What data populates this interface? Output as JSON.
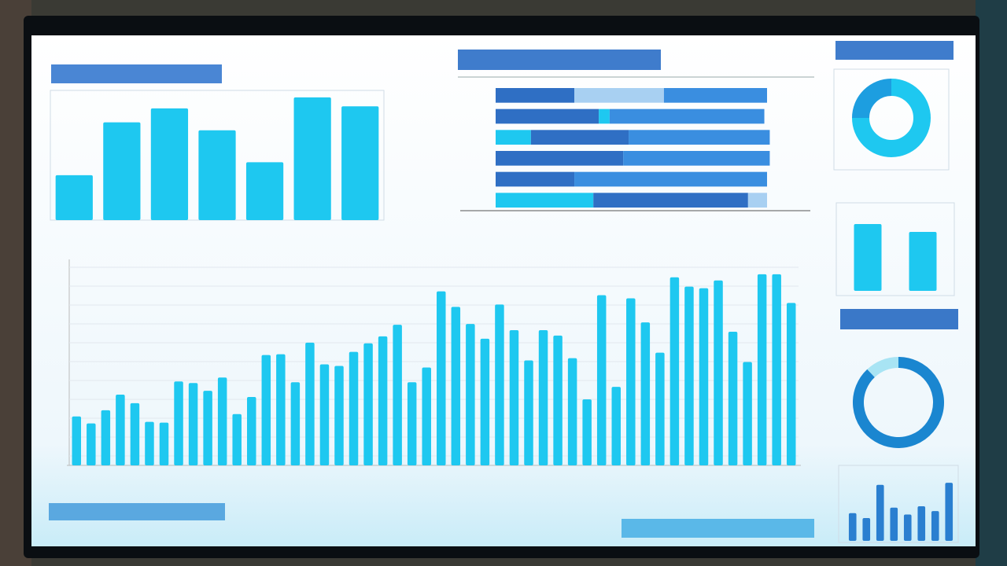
{
  "chart_data": [
    {
      "type": "bar",
      "categories": [
        null,
        null,
        null,
        null,
        null,
        null,
        null
      ],
      "values": [
        45,
        98,
        112,
        90,
        58,
        123,
        114
      ],
      "ylim": [
        0,
        130
      ],
      "color": "#1ec8f0"
    },
    {
      "type": "stacked_barh",
      "categories": [
        null,
        null,
        null,
        null,
        null,
        null
      ],
      "xlim": [
        0,
        100
      ],
      "series": [
        {
          "values": [
            29,
            38,
            13,
            47,
            29,
            36
          ],
          "colors": [
            "#2f6fc4",
            "#2f6fc4",
            "#1ec8f0",
            "#2f6fc4",
            "#2f6fc4",
            "#1ec8f0"
          ]
        },
        {
          "values": [
            33,
            4,
            36,
            54,
            71,
            57
          ],
          "colors": [
            "#a8d0f2",
            "#1ec8f0",
            "#2f6fc4",
            "#3a8ee0",
            "#3a8ee0",
            "#2f6fc4"
          ]
        },
        {
          "values": [
            38,
            57,
            52,
            null,
            null,
            7
          ],
          "colors": [
            "#3a8ee0",
            "#3a8ee0",
            "#3a8ee0",
            null,
            null,
            "#a8d0f2"
          ]
        }
      ]
    },
    {
      "type": "donut",
      "values": [
        75,
        25
      ],
      "colors": [
        "#1ec8f0",
        "#1d9ee0"
      ]
    },
    {
      "type": "bar",
      "values": [
        85,
        75
      ],
      "ylim": [
        0,
        100
      ],
      "color": "#1ec8f0"
    },
    {
      "type": "donut",
      "values": [
        88,
        12
      ],
      "colors": [
        "#1a86d0",
        "#a8e4f4"
      ]
    },
    {
      "type": "bar",
      "values": [
        40,
        33,
        81,
        48,
        38,
        50,
        43,
        84
      ],
      "ylim": [
        0,
        100
      ],
      "color": "#2a7fd0"
    },
    {
      "type": "bar",
      "values": [
        63,
        54,
        71,
        91,
        80,
        56,
        55,
        108,
        106,
        96,
        113,
        66,
        88,
        142,
        143,
        107,
        158,
        130,
        128,
        146,
        157,
        166,
        181,
        107,
        126,
        224,
        204,
        182,
        163,
        207,
        174,
        135,
        174,
        167,
        138,
        85,
        219,
        101,
        215,
        184,
        145,
        242,
        230,
        228,
        238,
        172,
        133,
        246,
        246,
        209
      ],
      "ylim": [
        0,
        260
      ],
      "color": "#1ec8f0"
    }
  ]
}
